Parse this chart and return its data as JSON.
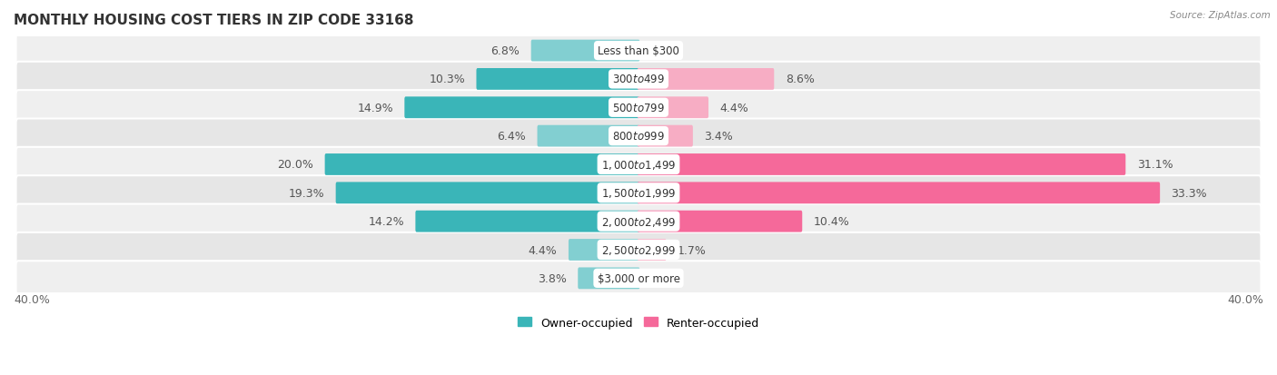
{
  "title": "MONTHLY HOUSING COST TIERS IN ZIP CODE 33168",
  "source": "Source: ZipAtlas.com",
  "categories": [
    "Less than $300",
    "$300 to $499",
    "$500 to $799",
    "$800 to $999",
    "$1,000 to $1,499",
    "$1,500 to $1,999",
    "$2,000 to $2,499",
    "$2,500 to $2,999",
    "$3,000 or more"
  ],
  "owner_values": [
    6.8,
    10.3,
    14.9,
    6.4,
    20.0,
    19.3,
    14.2,
    4.4,
    3.8
  ],
  "renter_values": [
    0.0,
    8.6,
    4.4,
    3.4,
    31.1,
    33.3,
    10.4,
    1.7,
    0.0
  ],
  "owner_color_dark": "#3ab5b8",
  "owner_color_light": "#82cfd1",
  "renter_color_dark": "#f5699a",
  "renter_color_light": "#f7adc4",
  "row_colors": [
    "#efefef",
    "#e6e6e6"
  ],
  "axis_limit": 40.0,
  "label_fontsize": 9,
  "title_fontsize": 11,
  "legend_fontsize": 9,
  "axis_label_fontsize": 9,
  "category_fontsize": 8.5,
  "bar_height": 0.6,
  "owner_dark_threshold": 10.0,
  "renter_dark_threshold": 10.0
}
